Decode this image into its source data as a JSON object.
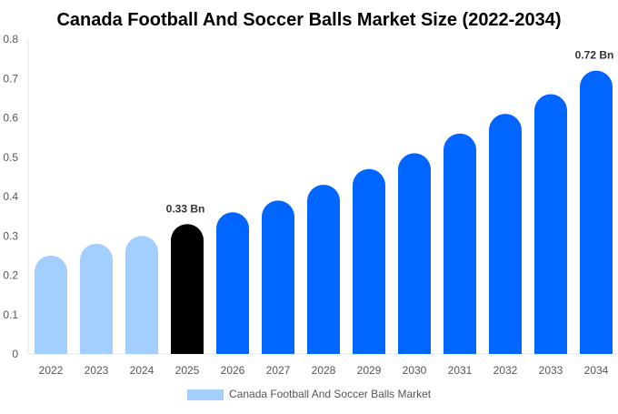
{
  "chart_data": {
    "type": "bar",
    "title": "Canada Football And Soccer Balls Market Size (2022-2034)",
    "xlabel": "",
    "ylabel": "",
    "ylim": [
      0,
      0.8
    ],
    "yticks": [
      "0",
      "0.1",
      "0.2",
      "0.3",
      "0.4",
      "0.5",
      "0.6",
      "0.7",
      "0.8"
    ],
    "categories": [
      "2022",
      "2023",
      "2024",
      "2025",
      "2026",
      "2027",
      "2028",
      "2029",
      "2030",
      "2031",
      "2032",
      "2033",
      "2034"
    ],
    "series": [
      {
        "name": "Canada Football And Soccer Balls Market",
        "values": [
          0.25,
          0.28,
          0.3,
          0.33,
          0.36,
          0.39,
          0.43,
          0.47,
          0.51,
          0.56,
          0.61,
          0.66,
          0.72
        ]
      }
    ],
    "bar_colors": [
      "#a3cfff",
      "#a3cfff",
      "#a3cfff",
      "#000000",
      "#0066ff",
      "#0066ff",
      "#0066ff",
      "#0066ff",
      "#0066ff",
      "#0066ff",
      "#0066ff",
      "#0066ff",
      "#0066ff"
    ],
    "data_labels": [
      {
        "category": "2025",
        "text": "0.33 Bn"
      },
      {
        "category": "2034",
        "text": "0.72 Bn"
      }
    ],
    "legend": {
      "position": "bottom",
      "color": "#a3cfff"
    },
    "grid": false
  }
}
